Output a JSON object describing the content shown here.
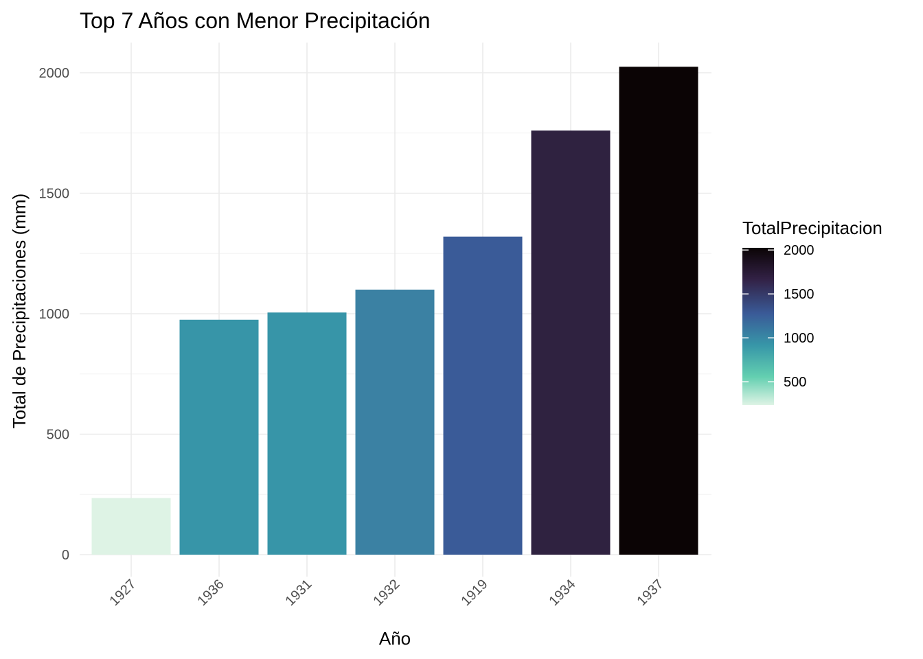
{
  "chart_data": {
    "type": "bar",
    "title": "Top 7 Años con Menor Precipitación",
    "xlabel": "Año",
    "ylabel": "Total de Precipitaciones (mm)",
    "categories": [
      "1927",
      "1936",
      "1931",
      "1932",
      "1919",
      "1934",
      "1937"
    ],
    "values": [
      235,
      975,
      1005,
      1100,
      1320,
      1760,
      2025
    ],
    "ylim": [
      0,
      2025
    ],
    "yticks": [
      0,
      500,
      1000,
      1500,
      2000
    ],
    "ytick_labels": [
      "0",
      "500",
      "1000",
      "1500",
      "2000"
    ],
    "grid": true,
    "legend": {
      "title": "TotalPrecipitacion",
      "placement": "right",
      "range": [
        235,
        2025
      ],
      "ticks": [
        500,
        1000,
        1500,
        2000
      ],
      "tick_labels": [
        "500",
        "1000",
        "1500",
        "2000"
      ]
    },
    "bar_colors": [
      "#def3e5",
      "#3795a8",
      "#3795a8",
      "#3b81a3",
      "#3a5b98",
      "#2f2240",
      "#0b0405"
    ]
  }
}
